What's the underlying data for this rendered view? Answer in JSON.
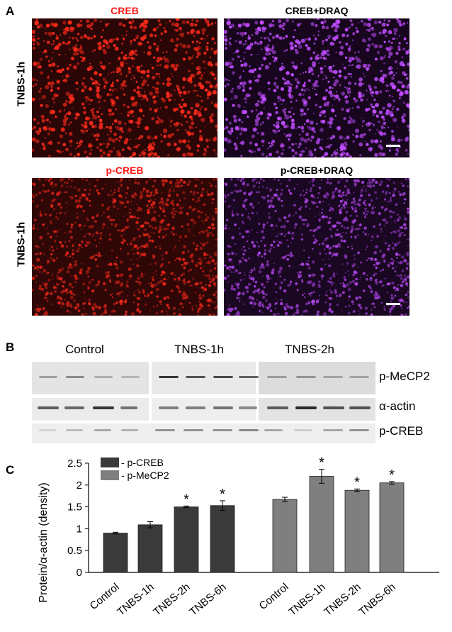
{
  "panel_letters": {
    "a": "A",
    "b": "B",
    "c": "C"
  },
  "panel_a": {
    "row_label": "TNBS-1h",
    "top_left_title": "CREB",
    "top_right_title": "CREB+DRAQ",
    "bottom_left_title": "p-CREB",
    "bottom_right_title": "p-CREB+DRAQ",
    "colors": {
      "red": "#ff2a1a",
      "magenta": "#c04cff",
      "title_red": "#ff1a1a"
    }
  },
  "panel_b": {
    "groups": [
      "Control",
      "TNBS-1h",
      "TNBS-2h"
    ],
    "rows": [
      "p-MeCP2",
      "α-actin",
      "p-CREB"
    ]
  },
  "chart_data": {
    "type": "bar",
    "ylabel": "Protein/α-actin (density)",
    "ylim": [
      0,
      2.5
    ],
    "yticks": [
      "0",
      "0.5",
      "1",
      "1.5",
      "2",
      "2.5"
    ],
    "categories": [
      "Control",
      "TNBS-1h",
      "TNBS-2h",
      "TNBS-6h"
    ],
    "legend_position": "top-left",
    "significance_marker": "*",
    "series": [
      {
        "name": "p-CREB",
        "color": "#3a3a3a",
        "values": [
          0.9,
          1.09,
          1.5,
          1.53
        ],
        "errors": [
          0.02,
          0.07,
          0.02,
          0.11
        ],
        "significant": [
          false,
          false,
          true,
          true
        ]
      },
      {
        "name": "p-MeCP2",
        "color": "#7f7f7f",
        "values": [
          1.67,
          2.2,
          1.88,
          2.05
        ],
        "errors": [
          0.05,
          0.16,
          0.03,
          0.03
        ],
        "significant": [
          false,
          true,
          true,
          true
        ]
      }
    ],
    "legend_prefix": "- "
  }
}
